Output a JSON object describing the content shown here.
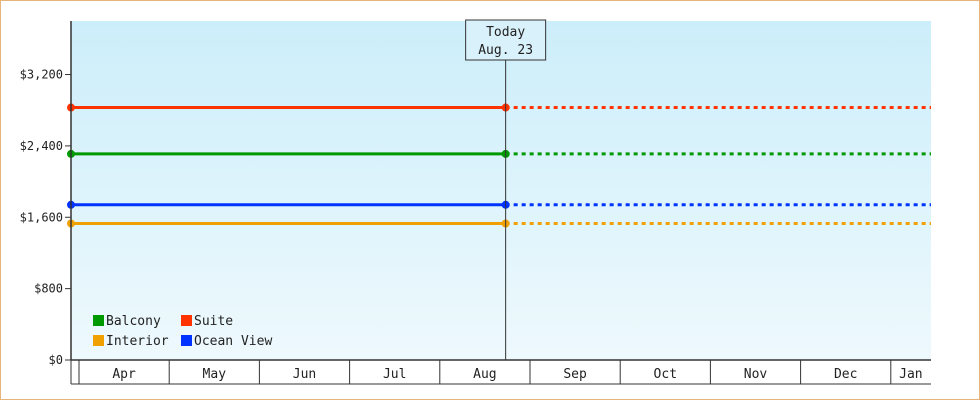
{
  "chart_data": {
    "type": "line",
    "title": "",
    "xlabel": "",
    "ylabel": "",
    "x_categories": [
      "Apr",
      "May",
      "Jun",
      "Jul",
      "Aug",
      "Sep",
      "Oct",
      "Nov",
      "Dec",
      "Jan"
    ],
    "ylim": [
      0,
      3800
    ],
    "y_ticks": [
      0,
      800,
      1600,
      2400,
      3200
    ],
    "y_tick_labels": [
      "$0",
      "$800",
      "$1,600",
      "$2,400",
      "$3,200"
    ],
    "grid": false,
    "legend_position": "bottom-left",
    "today_marker": {
      "line1": "Today",
      "line2": "Aug. 23",
      "month_position": 4.73
    },
    "series": [
      {
        "name": "Suite",
        "color": "#ff3300",
        "value": 2830
      },
      {
        "name": "Balcony",
        "color": "#009900",
        "value": 2310
      },
      {
        "name": "Ocean View",
        "color": "#0033ff",
        "value": 1740
      },
      {
        "name": "Interior",
        "color": "#f0a000",
        "value": 1530
      }
    ],
    "legend_order": [
      "Balcony",
      "Suite",
      "Interior",
      "Ocean View"
    ],
    "background_gradient": [
      "#cceefa",
      "#eef9fd"
    ]
  }
}
